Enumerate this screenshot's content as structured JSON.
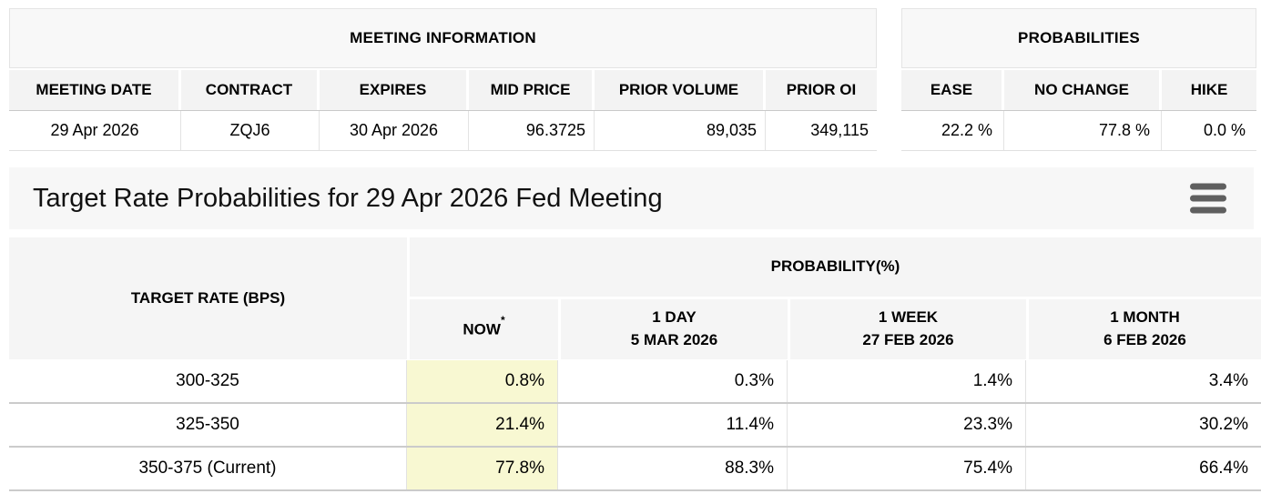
{
  "meeting_info": {
    "title": "MEETING INFORMATION",
    "columns": [
      "MEETING DATE",
      "CONTRACT",
      "EXPIRES",
      "MID PRICE",
      "PRIOR VOLUME",
      "PRIOR OI"
    ],
    "row": {
      "meeting_date": "29 Apr 2026",
      "contract": "ZQJ6",
      "expires": "30 Apr 2026",
      "mid_price": "96.3725",
      "prior_volume": "89,035",
      "prior_oi": "349,115"
    }
  },
  "probabilities": {
    "title": "PROBABILITIES",
    "columns": [
      "EASE",
      "NO CHANGE",
      "HIKE"
    ],
    "row": {
      "ease": "22.2 %",
      "no_change": "77.8 %",
      "hike": "0.0 %"
    }
  },
  "chart_header": {
    "title": "Target Rate Probabilities for 29 Apr 2026 Fed Meeting",
    "menu_icon": "hamburger-icon"
  },
  "rate_table": {
    "col1_header": "TARGET RATE (BPS)",
    "group_header": "PROBABILITY(%)",
    "sub_headers": [
      {
        "label": "NOW",
        "suffix": "*",
        "date": ""
      },
      {
        "label": "1 DAY",
        "date": "5 MAR 2026"
      },
      {
        "label": "1 WEEK",
        "date": "27 FEB 2026"
      },
      {
        "label": "1 MONTH",
        "date": "6 FEB 2026"
      }
    ],
    "rows": [
      {
        "target_rate": "300-325",
        "now": "0.8%",
        "one_day": "0.3%",
        "one_week": "1.4%",
        "one_month": "3.4%"
      },
      {
        "target_rate": "325-350",
        "now": "21.4%",
        "one_day": "11.4%",
        "one_week": "23.3%",
        "one_month": "30.2%"
      },
      {
        "target_rate": "350-375 (Current)",
        "now": "77.8%",
        "one_day": "88.3%",
        "one_week": "75.4%",
        "one_month": "66.4%"
      }
    ]
  },
  "colors": {
    "now_highlight": "#f8f8d2",
    "header_bg": "#f5f5f5",
    "titlebar_bg": "#f7f7f7",
    "row_border": "#cbcbcb"
  }
}
